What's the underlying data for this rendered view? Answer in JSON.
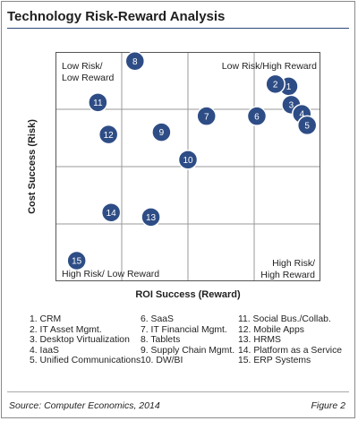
{
  "header": {
    "title": "Technology Risk-Reward Analysis"
  },
  "chart_data": {
    "type": "scatter",
    "xlabel": "ROI Success (Reward)",
    "ylabel": "Cost Success (Risk)",
    "xlim": [
      0,
      1
    ],
    "ylim": [
      0,
      1
    ],
    "grid": true,
    "quadrant_labels": {
      "top_left": [
        "Low Risk/",
        "Low Reward"
      ],
      "top_right": [
        "Low Risk/High Reward"
      ],
      "bottom_left": [
        "High Risk/ Low Reward"
      ],
      "bottom_right": [
        "High Risk/",
        "High Reward"
      ]
    },
    "points": [
      {
        "id": "1",
        "x": 0.88,
        "y": 0.85
      },
      {
        "id": "2",
        "x": 0.83,
        "y": 0.86
      },
      {
        "id": "3",
        "x": 0.89,
        "y": 0.77
      },
      {
        "id": "4",
        "x": 0.93,
        "y": 0.73
      },
      {
        "id": "5",
        "x": 0.95,
        "y": 0.68
      },
      {
        "id": "6",
        "x": 0.76,
        "y": 0.72
      },
      {
        "id": "7",
        "x": 0.57,
        "y": 0.72
      },
      {
        "id": "8",
        "x": 0.3,
        "y": 0.96
      },
      {
        "id": "9",
        "x": 0.4,
        "y": 0.65
      },
      {
        "id": "10",
        "x": 0.5,
        "y": 0.53
      },
      {
        "id": "11",
        "x": 0.16,
        "y": 0.78
      },
      {
        "id": "12",
        "x": 0.2,
        "y": 0.64
      },
      {
        "id": "13",
        "x": 0.36,
        "y": 0.28
      },
      {
        "id": "14",
        "x": 0.21,
        "y": 0.3
      },
      {
        "id": "15",
        "x": 0.08,
        "y": 0.09
      }
    ],
    "point_color": "#2e4d86",
    "point_border_color": "#ffffff"
  },
  "legend": {
    "columns": [
      [
        "1. CRM",
        "2. IT Asset Mgmt.",
        "3. Desktop Virtualization",
        "4. IaaS",
        "5. Unified Communications"
      ],
      [
        "6. SaaS",
        "7. IT Financial Mgmt.",
        "8. Tablets",
        "9. Supply Chain Mgmt.",
        "10. DW/BI"
      ],
      [
        "11. Social Bus./Collab.",
        "12.  Mobile Apps",
        "13. HRMS",
        "14. Platform as a Service",
        "15. ERP Systems"
      ]
    ]
  },
  "footer": {
    "source": "Source: Computer Economics, 2014",
    "figure": "Figure 2"
  }
}
